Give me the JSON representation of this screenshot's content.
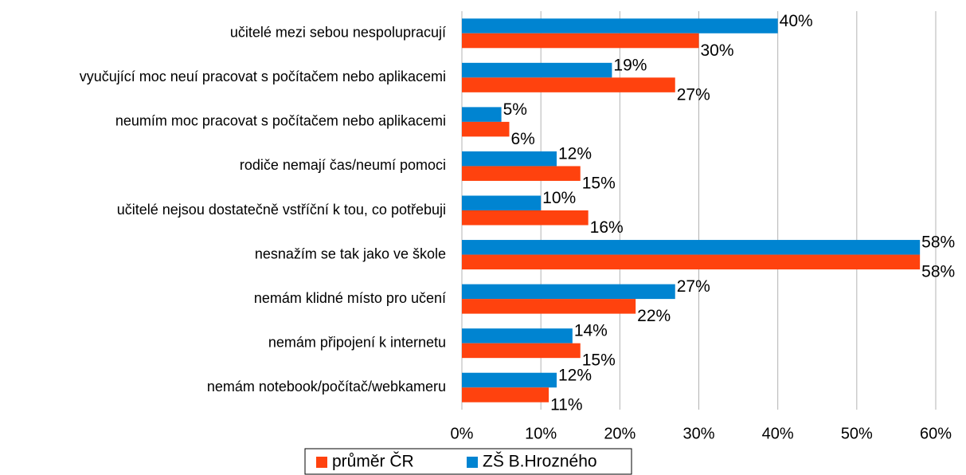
{
  "chart_data": {
    "type": "bar",
    "orientation": "horizontal",
    "categories": [
      "učitelé mezi sebou nespolupracují",
      "vyučující moc neuí pracovat s počítačem nebo aplikacemi",
      "neumím moc pracovat s počítačem nebo aplikacemi",
      "rodiče nemají čas/neumí pomoci",
      "učitelé nejsou dostatečně vstříční k tou, co potřebuji",
      "nesnažím se tak jako ve škole",
      "nemám klidné místo pro učení",
      "nemám připojení k internetu",
      "nemám notebook/počítač/webkameru"
    ],
    "series": [
      {
        "name": "průměr ČR",
        "color": "#ff420e",
        "values": [
          30,
          27,
          6,
          15,
          16,
          58,
          22,
          15,
          11
        ],
        "value_labels": [
          "30%",
          "27%",
          "6%",
          "15%",
          "16%",
          "58%",
          "22%",
          "15%",
          "11%"
        ]
      },
      {
        "name": "ZŠ B.Hrozného",
        "color": "#0084d1",
        "values": [
          40,
          19,
          5,
          12,
          10,
          58,
          27,
          14,
          12
        ],
        "value_labels": [
          "40%",
          "19%",
          "5%",
          "12%",
          "10%",
          "58%",
          "27%",
          "14%",
          "12%"
        ]
      }
    ],
    "xlim": [
      0,
      60
    ],
    "xticks": [
      {
        "value": 0,
        "label": "0%"
      },
      {
        "value": 10,
        "label": "10%"
      },
      {
        "value": 20,
        "label": "20%"
      },
      {
        "value": 30,
        "label": "30%"
      },
      {
        "value": 40,
        "label": "40%"
      },
      {
        "value": 50,
        "label": "50%"
      },
      {
        "value": 60,
        "label": "60%"
      }
    ],
    "grid": true,
    "legend": "bottom"
  }
}
